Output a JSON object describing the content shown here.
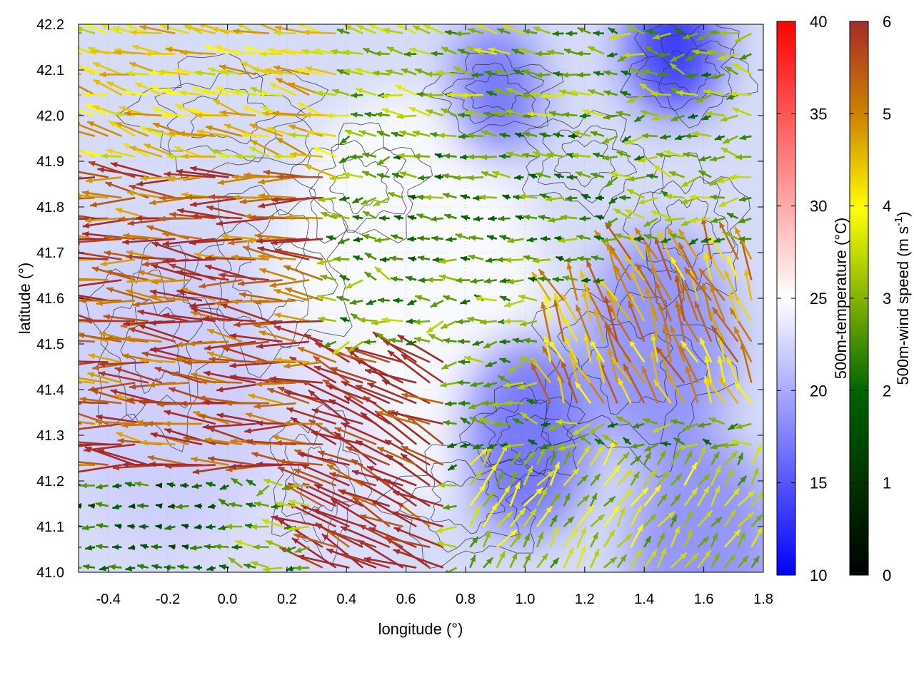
{
  "chart_data": {
    "type": "heatmap",
    "title": "",
    "xlabel": "longitude (°)",
    "ylabel": "latitude (°)",
    "xlim": [
      -0.5,
      1.8
    ],
    "ylim": [
      41.0,
      42.2
    ],
    "x_ticks": [
      "-0.4",
      "-0.2",
      "0.0",
      "0.2",
      "0.4",
      "0.6",
      "0.8",
      "1.0",
      "1.2",
      "1.4",
      "1.6",
      "1.8"
    ],
    "y_ticks": [
      "41.0",
      "41.1",
      "41.2",
      "41.3",
      "41.4",
      "41.5",
      "41.6",
      "41.7",
      "41.8",
      "41.9",
      "42.0",
      "42.1",
      "42.2"
    ],
    "grid": true,
    "temperature_colorbar": {
      "label": "500m-temperature (°C)",
      "range": [
        10,
        40
      ],
      "ticks": [
        "10",
        "15",
        "20",
        "25",
        "30",
        "35",
        "40"
      ],
      "colors": [
        "#0000ff",
        "#ffffff",
        "#ff0000"
      ]
    },
    "wind_colorbar": {
      "label": "500m-wind speed (m s",
      "label_superscript": "-1",
      "label_close": ")",
      "range": [
        0,
        6
      ],
      "ticks": [
        "0",
        "1",
        "2",
        "3",
        "4",
        "5",
        "6"
      ],
      "colors": [
        "#000000",
        "#006400",
        "#ffff00",
        "#cd8500",
        "#a52a2a"
      ]
    },
    "temperature_field": [
      {
        "lon": 0.6,
        "lat": 41.6,
        "temp": 25,
        "spread": 0.45
      },
      {
        "lon": 0.2,
        "lat": 41.2,
        "temp": 23,
        "spread": 0.35
      },
      {
        "lon": -0.2,
        "lat": 41.4,
        "temp": 22,
        "spread": 0.35
      },
      {
        "lon": 1.0,
        "lat": 41.3,
        "temp": 16,
        "spread": 0.22
      },
      {
        "lon": 1.5,
        "lat": 42.15,
        "temp": 12,
        "spread": 0.15
      },
      {
        "lon": 0.9,
        "lat": 42.05,
        "temp": 16,
        "spread": 0.15
      },
      {
        "lon": 1.45,
        "lat": 41.5,
        "temp": 18,
        "spread": 0.25
      },
      {
        "lon": 1.6,
        "lat": 41.05,
        "temp": 18,
        "spread": 0.25
      }
    ],
    "wind_regions": [
      {
        "lon": [
          -0.5,
          0.35
        ],
        "lat": [
          41.2,
          41.9
        ],
        "speed": 5.5,
        "dir_deg": 175
      },
      {
        "lon": [
          0.3,
          0.75
        ],
        "lat": [
          41.0,
          41.5
        ],
        "speed": 6.0,
        "dir_deg": 155
      },
      {
        "lon": [
          -0.5,
          0.4
        ],
        "lat": [
          41.85,
          42.2
        ],
        "speed": 4.2,
        "dir_deg": 165
      },
      {
        "lon": [
          0.55,
          1.3
        ],
        "lat": [
          41.6,
          42.0
        ],
        "speed": 2.5,
        "dir_deg": 175
      },
      {
        "lon": [
          1.05,
          1.8
        ],
        "lat": [
          41.35,
          41.7
        ],
        "speed": 4.8,
        "dir_deg": 115
      },
      {
        "lon": [
          0.8,
          1.8
        ],
        "lat": [
          41.0,
          41.25
        ],
        "speed": 3.3,
        "dir_deg": 55
      },
      {
        "lon": [
          0.4,
          1.3
        ],
        "lat": [
          42.0,
          42.2
        ],
        "speed": 3.0,
        "dir_deg": 170
      },
      {
        "lon": [
          -0.5,
          0.0
        ],
        "lat": [
          41.0,
          41.2
        ],
        "speed": 2.0,
        "dir_deg": 180
      }
    ]
  }
}
